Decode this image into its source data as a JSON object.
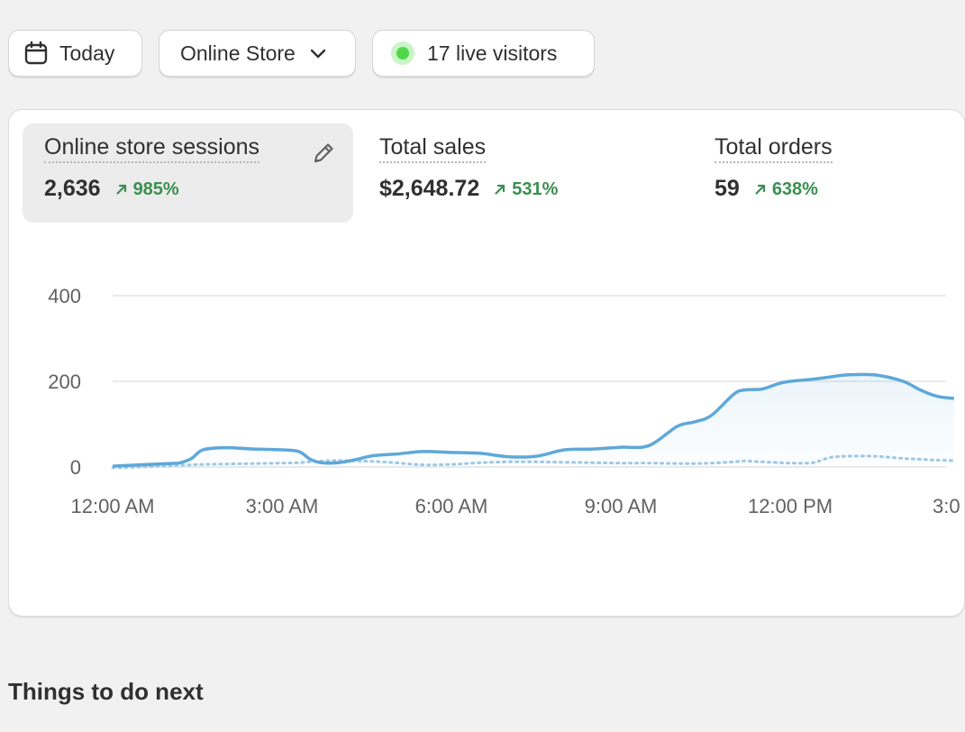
{
  "toolbar": {
    "date_label": "Today",
    "channel_label": "Online Store",
    "live_label": "17 live visitors"
  },
  "metrics": [
    {
      "title": "Online store sessions",
      "value": "2,636",
      "change": "985%"
    },
    {
      "title": "Total sales",
      "value": "$2,648.72",
      "change": "531%"
    },
    {
      "title": "Total orders",
      "value": "59",
      "change": "638%"
    }
  ],
  "colors": {
    "accent": "#5ea8d8",
    "positive": "#3a8f50",
    "live": "#4fd84a"
  },
  "icons": {
    "date": "calendar-icon",
    "channel": "chevron-down-icon",
    "edit": "pencil-icon",
    "change": "arrow-up-right-icon"
  },
  "chart_data": {
    "type": "line",
    "y_ticks": [
      "400",
      "200",
      "0"
    ],
    "x_ticks": [
      "12:00 AM",
      "3:00 AM",
      "6:00 AM",
      "9:00 AM",
      "12:00 PM",
      "3:0"
    ],
    "ylim": [
      0,
      400
    ],
    "x_hours": [
      0,
      0.5,
      1,
      1.2,
      1.4,
      1.6,
      2,
      2.5,
      3,
      3.3,
      3.5,
      3.7,
      4,
      4.3,
      4.6,
      5,
      5.5,
      6,
      6.5,
      7,
      7.5,
      8,
      8.5,
      9,
      9.5,
      10,
      10.3,
      10.6,
      11,
      11.2,
      11.5,
      11.8,
      12,
      12.4,
      12.7,
      13,
      13.5,
      14,
      14.3,
      14.6,
      14.9
    ],
    "series": [
      {
        "values": [
          2,
          5,
          8,
          10,
          20,
          40,
          45,
          42,
          40,
          36,
          18,
          10,
          10,
          17,
          26,
          30,
          36,
          34,
          32,
          24,
          25,
          40,
          42,
          46,
          50,
          95,
          105,
          120,
          170,
          180,
          182,
          195,
          200,
          205,
          210,
          215,
          215,
          200,
          180,
          165,
          160
        ],
        "style": "solid"
      },
      {
        "values": [
          -2,
          0,
          3,
          4,
          5,
          6,
          7,
          8,
          9,
          10,
          12,
          14,
          15,
          14,
          13,
          10,
          5,
          6,
          10,
          12,
          12,
          11,
          10,
          9,
          9,
          8,
          8,
          9,
          12,
          14,
          12,
          10,
          9,
          10,
          22,
          25,
          25,
          20,
          18,
          16,
          15
        ],
        "style": "dotted"
      }
    ]
  },
  "next_section": {
    "title": "Things to do next"
  }
}
